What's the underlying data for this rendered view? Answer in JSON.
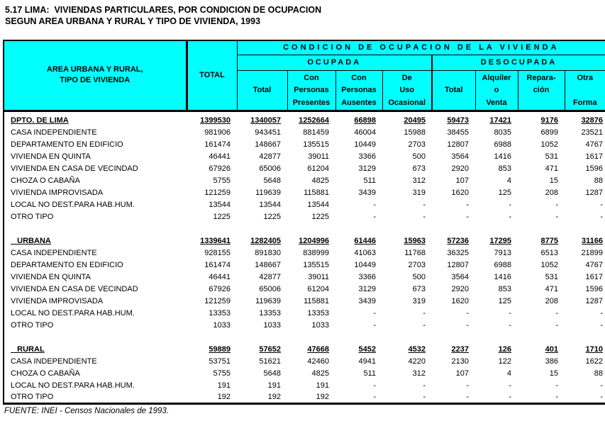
{
  "title": {
    "line1": "5.17 LIMA:  VIVIENDAS PARTICULARES, POR CONDICION DE OCUPACION",
    "line2": "SEGUN AREA URBANA Y RURAL Y TIPO DE VIVIENDA, 1993"
  },
  "source": "FUENTE: INEI - Censos Nacionales de 1993.",
  "colors": {
    "header_background": "#00ffff",
    "border": "#000000",
    "text": "#000000"
  },
  "header": {
    "area_line1": "AREA URBANA Y RURAL,",
    "area_line2": "TIPO DE VIVIENDA",
    "total": "TOTAL",
    "condicion": "CONDICION DE OCUPACION DE LA VIVIENDA",
    "groups": [
      {
        "label": "OCUPADA"
      },
      {
        "label": "DESOCUPADA"
      }
    ],
    "subcolumns": [
      {
        "name": "ocupada-total",
        "lines": [
          "",
          "Total",
          ""
        ]
      },
      {
        "name": "con-personas-presentes",
        "lines": [
          "Con",
          "Personas",
          "Presentes"
        ]
      },
      {
        "name": "con-personas-ausentes",
        "lines": [
          "Con",
          "Personas",
          "Ausentes"
        ]
      },
      {
        "name": "de-uso-ocasional",
        "lines": [
          "De",
          "Uso",
          "Ocasional"
        ]
      },
      {
        "name": "desocupada-total",
        "lines": [
          "",
          "Total",
          ""
        ]
      },
      {
        "name": "alquiler-o-venta",
        "lines": [
          "Alquiler",
          "o",
          "Venta"
        ]
      },
      {
        "name": "reparacion",
        "lines": [
          "Repara-",
          "ción",
          ""
        ]
      },
      {
        "name": "otra-forma",
        "lines": [
          "Otra",
          "",
          "Forma"
        ]
      }
    ]
  },
  "rows": [
    {
      "type": "section",
      "label": "DPTO. DE LIMA",
      "values": [
        "1399530",
        "1340057",
        "1252664",
        "66898",
        "20495",
        "59473",
        "17421",
        "9176",
        "32876"
      ]
    },
    {
      "type": "data",
      "label": "CASA INDEPENDIENTE",
      "values": [
        "981906",
        "943451",
        "881459",
        "46004",
        "15988",
        "38455",
        "8035",
        "6899",
        "23521"
      ]
    },
    {
      "type": "data",
      "label": "DEPARTAMENTO EN EDIFICIO",
      "values": [
        "161474",
        "148667",
        "135515",
        "10449",
        "2703",
        "12807",
        "6988",
        "1052",
        "4767"
      ]
    },
    {
      "type": "data",
      "label": "VIVIENDA EN QUINTA",
      "values": [
        "46441",
        "42877",
        "39011",
        "3366",
        "500",
        "3564",
        "1416",
        "531",
        "1617"
      ]
    },
    {
      "type": "data",
      "label": "VIVIENDA EN CASA DE VECINDAD",
      "values": [
        "67926",
        "65006",
        "61204",
        "3129",
        "673",
        "2920",
        "853",
        "471",
        "1596"
      ]
    },
    {
      "type": "data",
      "label": "CHOZA O CABAÑA",
      "values": [
        "5755",
        "5648",
        "4825",
        "511",
        "312",
        "107",
        "4",
        "15",
        "88"
      ]
    },
    {
      "type": "data",
      "label": "VIVIENDA IMPROVISADA",
      "values": [
        "121259",
        "119639",
        "115881",
        "3439",
        "319",
        "1620",
        "125",
        "208",
        "1287"
      ]
    },
    {
      "type": "data",
      "label": "LOCAL NO DEST.PARA HAB.HUM.",
      "values": [
        "13544",
        "13544",
        "13544",
        "-",
        "-",
        "-",
        "-",
        "-",
        "-"
      ]
    },
    {
      "type": "data",
      "label": "OTRO TIPO",
      "values": [
        "1225",
        "1225",
        "1225",
        "-",
        "-",
        "-",
        "-",
        "-",
        "-"
      ]
    },
    {
      "type": "blank"
    },
    {
      "type": "section",
      "label": "   URBANA",
      "values": [
        "1339641",
        "1282405",
        "1204996",
        "61446",
        "15963",
        "57236",
        "17295",
        "8775",
        "31166"
      ]
    },
    {
      "type": "data",
      "label": "CASA INDEPENDIENTE",
      "values": [
        "928155",
        "891830",
        "838999",
        "41063",
        "11768",
        "36325",
        "7913",
        "6513",
        "21899"
      ]
    },
    {
      "type": "data",
      "label": "DEPARTAMENTO EN EDIFICIO",
      "values": [
        "161474",
        "148667",
        "135515",
        "10449",
        "2703",
        "12807",
        "6988",
        "1052",
        "4767"
      ]
    },
    {
      "type": "data",
      "label": "VIVIENDA EN QUINTA",
      "values": [
        "46441",
        "42877",
        "39011",
        "3366",
        "500",
        "3564",
        "1416",
        "531",
        "1617"
      ]
    },
    {
      "type": "data",
      "label": "VIVIENDA EN CASA DE VECINDAD",
      "values": [
        "67926",
        "65006",
        "61204",
        "3129",
        "673",
        "2920",
        "853",
        "471",
        "1596"
      ]
    },
    {
      "type": "data",
      "label": "VIVIENDA IMPROVISADA",
      "values": [
        "121259",
        "119639",
        "115881",
        "3439",
        "319",
        "1620",
        "125",
        "208",
        "1287"
      ]
    },
    {
      "type": "data",
      "label": "LOCAL NO DEST.PARA HAB.HUM.",
      "values": [
        "13353",
        "13353",
        "13353",
        "-",
        "-",
        "-",
        "-",
        "-",
        "-"
      ]
    },
    {
      "type": "data",
      "label": "OTRO TIPO",
      "values": [
        "1033",
        "1033",
        "1033",
        "-",
        "-",
        "-",
        "-",
        "-",
        "-"
      ]
    },
    {
      "type": "blank"
    },
    {
      "type": "section",
      "label": "   RURAL",
      "values": [
        "59889",
        "57652",
        "47668",
        "5452",
        "4532",
        "2237",
        "126",
        "401",
        "1710"
      ]
    },
    {
      "type": "data",
      "label": "CASA INDEPENDIENTE",
      "values": [
        "53751",
        "51621",
        "42460",
        "4941",
        "4220",
        "2130",
        "122",
        "386",
        "1622"
      ]
    },
    {
      "type": "data",
      "label": "CHOZA O CABAÑA",
      "values": [
        "5755",
        "5648",
        "4825",
        "511",
        "312",
        "107",
        "4",
        "15",
        "88"
      ]
    },
    {
      "type": "data",
      "label": "LOCAL NO DEST.PARA HAB.HUM.",
      "values": [
        "191",
        "191",
        "191",
        "-",
        "-",
        "-",
        "-",
        "-",
        "-"
      ]
    },
    {
      "type": "data",
      "label": "OTRO TIPO",
      "values": [
        "192",
        "192",
        "192",
        "-",
        "-",
        "-",
        "-",
        "-",
        "-"
      ]
    }
  ]
}
